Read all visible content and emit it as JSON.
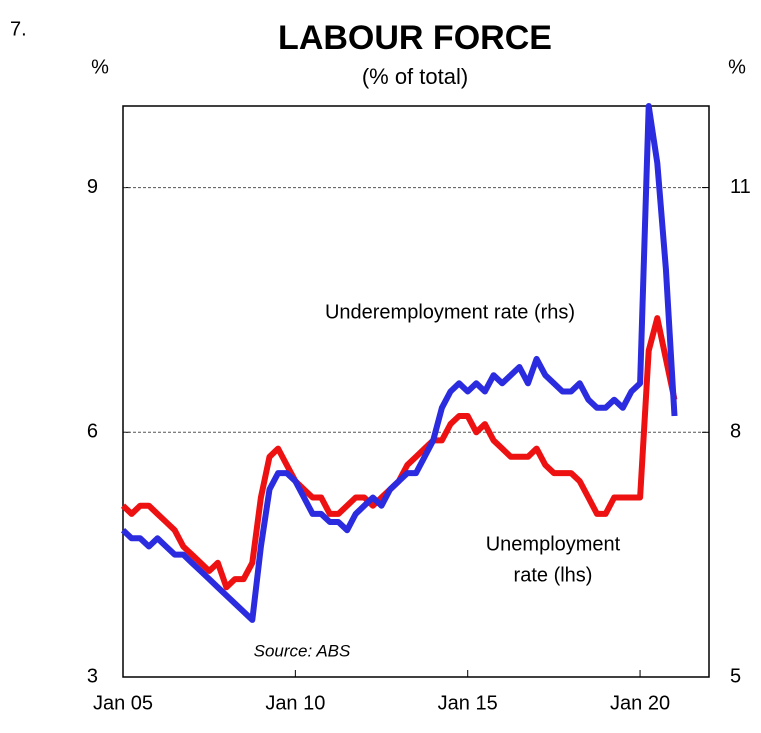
{
  "chart_data": {
    "type": "line",
    "number": "7.",
    "title": "LABOUR FORCE",
    "subtitle": "(% of total)",
    "y_unit": "%",
    "y2_unit": "%",
    "source": "Source: ABS",
    "annotations": [
      {
        "text": "Underemployment rate (rhs)",
        "color": "#2b2bdf"
      },
      {
        "text": [
          "Unemployment",
          "rate (lhs)"
        ],
        "color": "#ee1111"
      }
    ],
    "x": [
      2005,
      2005.25,
      2005.5,
      2005.75,
      2006,
      2006.25,
      2006.5,
      2006.75,
      2007,
      2007.25,
      2007.5,
      2007.75,
      2008,
      2008.25,
      2008.5,
      2008.75,
      2009,
      2009.25,
      2009.5,
      2009.75,
      2010,
      2010.25,
      2010.5,
      2010.75,
      2011,
      2011.25,
      2011.5,
      2011.75,
      2012,
      2012.25,
      2012.5,
      2012.75,
      2013,
      2013.25,
      2013.5,
      2013.75,
      2014,
      2014.25,
      2014.5,
      2014.75,
      2015,
      2015.25,
      2015.5,
      2015.75,
      2016,
      2016.25,
      2016.5,
      2016.75,
      2017,
      2017.25,
      2017.5,
      2017.75,
      2018,
      2018.25,
      2018.5,
      2018.75,
      2019,
      2019.25,
      2019.5,
      2019.75,
      2020,
      2020.25,
      2020.5,
      2020.75,
      2021
    ],
    "xlim": [
      2005,
      2022
    ],
    "xticks": [
      {
        "value": 2005,
        "label": "Jan 05"
      },
      {
        "value": 2010,
        "label": "Jan 10"
      },
      {
        "value": 2015,
        "label": "Jan 15"
      },
      {
        "value": 2020,
        "label": "Jan 20"
      }
    ],
    "ylim": [
      3,
      10
    ],
    "yticks": [
      3,
      6,
      9
    ],
    "y2lim": [
      5,
      12
    ],
    "y2ticks": [
      5,
      8,
      11
    ],
    "grid": true,
    "series": [
      {
        "name": "Unemployment rate (lhs)",
        "color": "#ee1111",
        "axis": "y",
        "values": [
          5.1,
          5.0,
          5.1,
          5.1,
          5.0,
          4.9,
          4.8,
          4.6,
          4.5,
          4.4,
          4.3,
          4.4,
          4.1,
          4.2,
          4.2,
          4.4,
          5.2,
          5.7,
          5.8,
          5.6,
          5.4,
          5.3,
          5.2,
          5.2,
          5.0,
          5.0,
          5.1,
          5.2,
          5.2,
          5.1,
          5.2,
          5.3,
          5.4,
          5.6,
          5.7,
          5.8,
          5.9,
          5.9,
          6.1,
          6.2,
          6.2,
          6.0,
          6.1,
          5.9,
          5.8,
          5.7,
          5.7,
          5.7,
          5.8,
          5.6,
          5.5,
          5.5,
          5.5,
          5.4,
          5.2,
          5.0,
          5.0,
          5.2,
          5.2,
          5.2,
          5.2,
          7.0,
          7.4,
          6.9,
          6.4
        ]
      },
      {
        "name": "Underemployment rate (rhs)",
        "color": "#2b2bdf",
        "axis": "y2",
        "values": [
          6.8,
          6.7,
          6.7,
          6.6,
          6.7,
          6.6,
          6.5,
          6.5,
          6.4,
          6.3,
          6.2,
          6.1,
          6.0,
          5.9,
          5.8,
          5.7,
          6.6,
          7.3,
          7.5,
          7.5,
          7.4,
          7.2,
          7.0,
          7.0,
          6.9,
          6.9,
          6.8,
          7.0,
          7.1,
          7.2,
          7.1,
          7.3,
          7.4,
          7.5,
          7.5,
          7.7,
          7.9,
          8.3,
          8.5,
          8.6,
          8.5,
          8.6,
          8.5,
          8.7,
          8.6,
          8.7,
          8.8,
          8.6,
          8.9,
          8.7,
          8.6,
          8.5,
          8.5,
          8.6,
          8.4,
          8.3,
          8.3,
          8.4,
          8.3,
          8.5,
          8.6,
          12.0,
          11.3,
          10.0,
          8.2
        ]
      }
    ]
  }
}
